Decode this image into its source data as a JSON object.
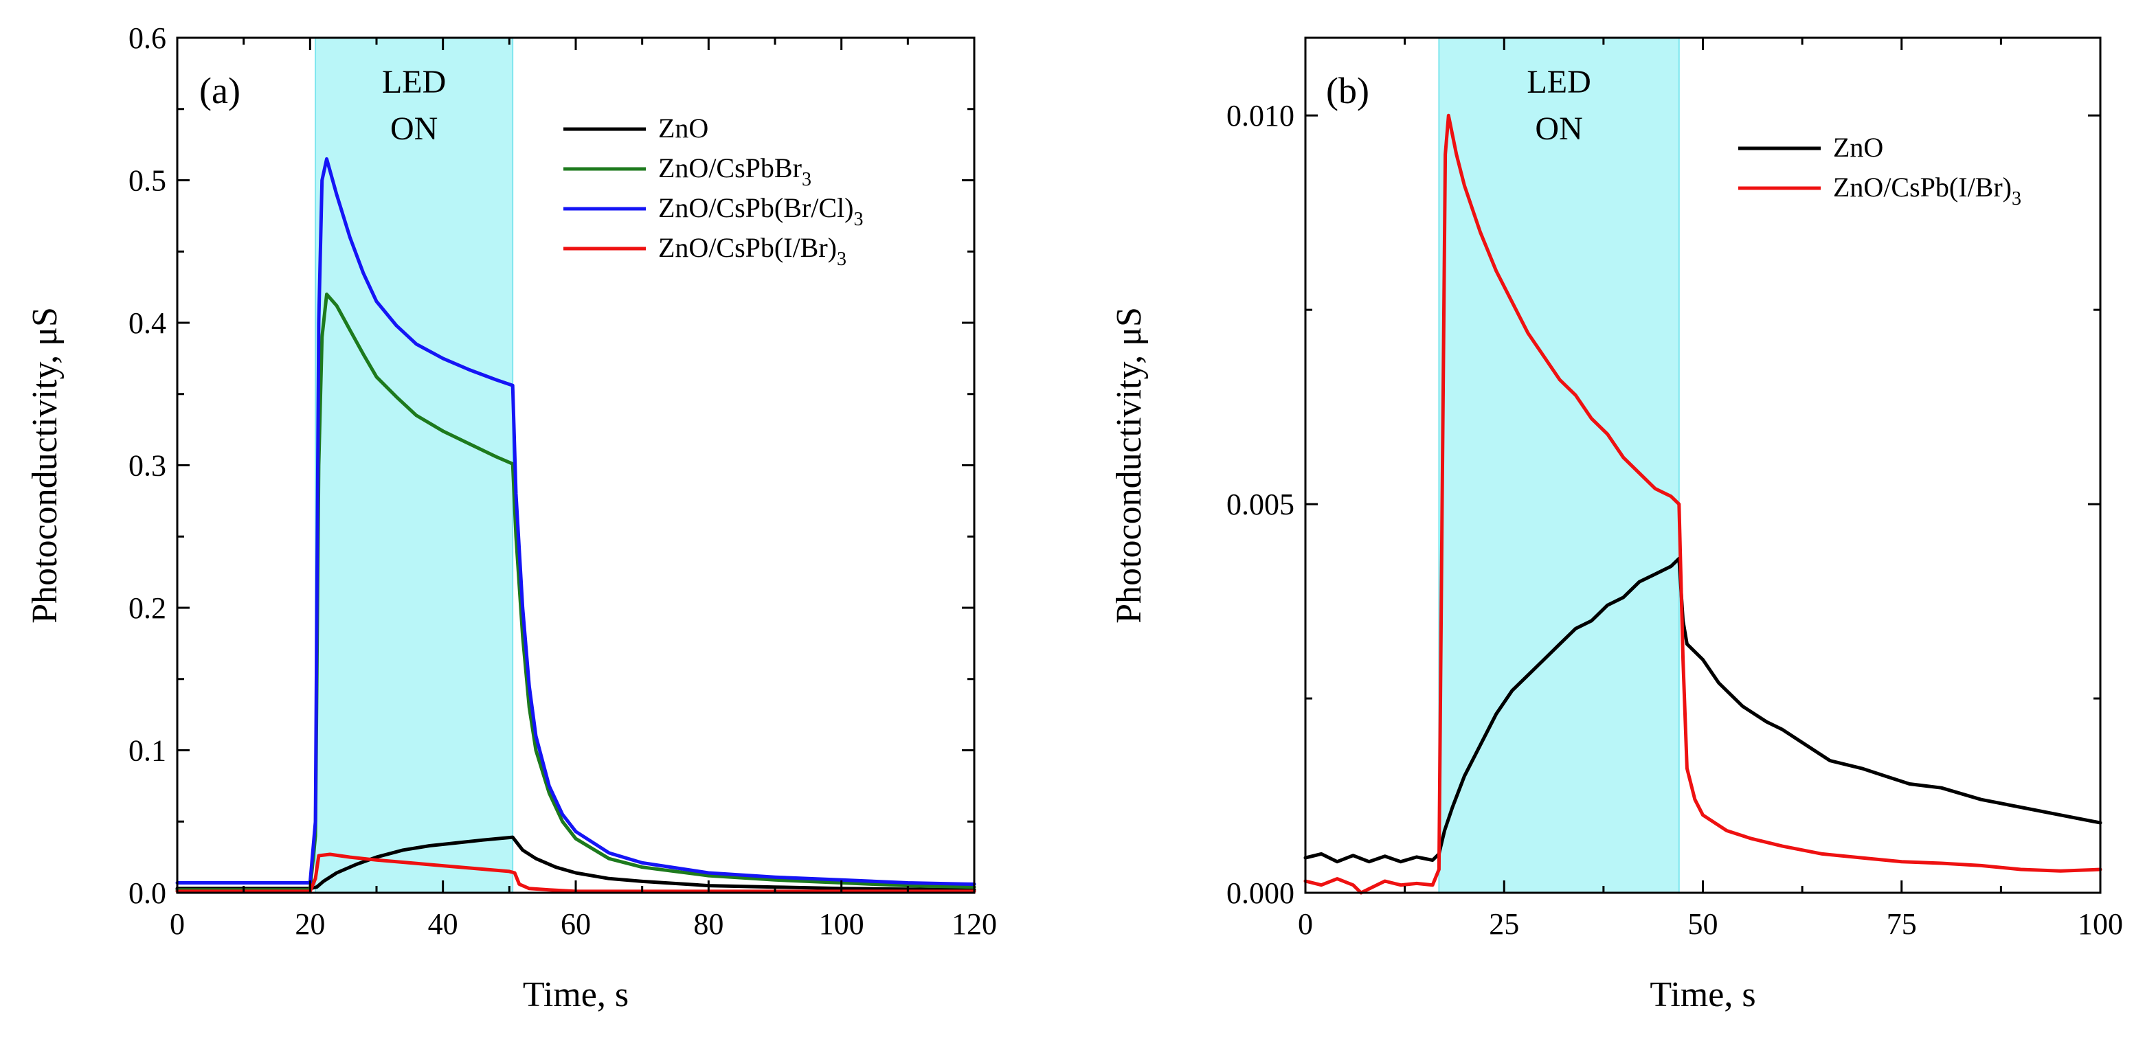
{
  "chart_data": [
    {
      "type": "line",
      "panel_label": "(a)",
      "xlabel": "Time, s",
      "ylabel": "Photoconductivity, μS",
      "xlim": [
        0,
        120
      ],
      "ylim": [
        0,
        0.6
      ],
      "xticks": [
        "0",
        "20",
        "40",
        "60",
        "80",
        "100",
        "120"
      ],
      "yticks": [
        "0.0",
        "0.1",
        "0.2",
        "0.3",
        "0.4",
        "0.5",
        "0.6"
      ],
      "highlight": {
        "x_start": 20.8,
        "x_end": 50.5,
        "label_lines": [
          "LED",
          "ON"
        ],
        "color": "#b9f6f8",
        "edge_color": "#7fe6ee"
      },
      "legend_position": "top-right",
      "series": [
        {
          "name": "ZnO",
          "name_parts": [
            "ZnO",
            "",
            ""
          ],
          "color": "#000000",
          "points": [
            [
              0,
              0.003
            ],
            [
              20,
              0.003
            ],
            [
              21,
              0.004
            ],
            [
              22,
              0.008
            ],
            [
              24,
              0.014
            ],
            [
              27,
              0.02
            ],
            [
              30,
              0.025
            ],
            [
              34,
              0.03
            ],
            [
              38,
              0.033
            ],
            [
              42,
              0.035
            ],
            [
              46,
              0.037
            ],
            [
              50.5,
              0.039
            ],
            [
              51,
              0.036
            ],
            [
              52,
              0.03
            ],
            [
              54,
              0.024
            ],
            [
              57,
              0.018
            ],
            [
              60,
              0.014
            ],
            [
              65,
              0.01
            ],
            [
              70,
              0.008
            ],
            [
              80,
              0.005
            ],
            [
              90,
              0.004
            ],
            [
              100,
              0.003
            ],
            [
              120,
              0.002
            ]
          ]
        },
        {
          "name": "ZnO/CsPbBr3",
          "name_parts": [
            "ZnO/CsPbBr",
            "3",
            ""
          ],
          "color": "#1d7a1d",
          "points": [
            [
              0,
              0.002
            ],
            [
              20,
              0.002
            ],
            [
              20.8,
              0.04
            ],
            [
              21.3,
              0.3
            ],
            [
              21.8,
              0.39
            ],
            [
              22.5,
              0.42
            ],
            [
              24,
              0.412
            ],
            [
              26,
              0.395
            ],
            [
              28,
              0.378
            ],
            [
              30,
              0.362
            ],
            [
              33,
              0.348
            ],
            [
              36,
              0.335
            ],
            [
              40,
              0.324
            ],
            [
              44,
              0.315
            ],
            [
              48,
              0.306
            ],
            [
              50.5,
              0.301
            ],
            [
              51,
              0.25
            ],
            [
              52,
              0.18
            ],
            [
              53,
              0.13
            ],
            [
              54,
              0.1
            ],
            [
              56,
              0.07
            ],
            [
              58,
              0.05
            ],
            [
              60,
              0.038
            ],
            [
              65,
              0.024
            ],
            [
              70,
              0.018
            ],
            [
              80,
              0.012
            ],
            [
              90,
              0.009
            ],
            [
              100,
              0.007
            ],
            [
              110,
              0.005
            ],
            [
              120,
              0.004
            ]
          ]
        },
        {
          "name": "ZnO/CsPb(Br/Cl)3",
          "name_parts": [
            "ZnO/CsPb(Br/Cl)",
            "3",
            ""
          ],
          "color": "#1515f5",
          "points": [
            [
              0,
              0.007
            ],
            [
              20,
              0.007
            ],
            [
              20.8,
              0.05
            ],
            [
              21.3,
              0.4
            ],
            [
              21.8,
              0.5
            ],
            [
              22.5,
              0.515
            ],
            [
              24,
              0.49
            ],
            [
              26,
              0.46
            ],
            [
              28,
              0.435
            ],
            [
              30,
              0.415
            ],
            [
              33,
              0.398
            ],
            [
              36,
              0.385
            ],
            [
              40,
              0.375
            ],
            [
              44,
              0.367
            ],
            [
              48,
              0.36
            ],
            [
              50.5,
              0.356
            ],
            [
              51,
              0.28
            ],
            [
              52,
              0.2
            ],
            [
              53,
              0.145
            ],
            [
              54,
              0.11
            ],
            [
              56,
              0.075
            ],
            [
              58,
              0.055
            ],
            [
              60,
              0.043
            ],
            [
              65,
              0.028
            ],
            [
              70,
              0.021
            ],
            [
              80,
              0.014
            ],
            [
              90,
              0.011
            ],
            [
              100,
              0.009
            ],
            [
              110,
              0.007
            ],
            [
              120,
              0.006
            ]
          ]
        },
        {
          "name": "ZnO/CsPb(I/Br)3",
          "name_parts": [
            "ZnO/CsPb(I/Br)",
            "3",
            ""
          ],
          "color": "#ee1111",
          "points": [
            [
              0,
              0.001
            ],
            [
              20,
              0.001
            ],
            [
              20.8,
              0.01
            ],
            [
              21.3,
              0.026
            ],
            [
              23,
              0.027
            ],
            [
              26,
              0.025
            ],
            [
              30,
              0.023
            ],
            [
              35,
              0.021
            ],
            [
              40,
              0.019
            ],
            [
              45,
              0.017
            ],
            [
              50,
              0.015
            ],
            [
              50.8,
              0.014
            ],
            [
              51.5,
              0.006
            ],
            [
              53,
              0.003
            ],
            [
              56,
              0.002
            ],
            [
              60,
              0.001
            ],
            [
              120,
              0.001
            ]
          ]
        }
      ]
    },
    {
      "type": "line",
      "panel_label": "(b)",
      "xlabel": "Time, s",
      "ylabel": "Photoconductivity, μS",
      "xlim": [
        0,
        100
      ],
      "ylim": [
        0,
        0.011
      ],
      "xticks": [
        "0",
        "25",
        "50",
        "75",
        "100"
      ],
      "yticks": [
        "0.000",
        "0.005",
        "0.010"
      ],
      "ytick_values": [
        0,
        0.005,
        0.01
      ],
      "highlight": {
        "x_start": 16.8,
        "x_end": 47,
        "label_lines": [
          "LED",
          "ON"
        ],
        "color": "#b9f6f8",
        "edge_color": "#7fe6ee"
      },
      "legend_position": "top-right",
      "series": [
        {
          "name": "ZnO",
          "name_parts": [
            "ZnO",
            "",
            ""
          ],
          "color": "#000000",
          "points": [
            [
              0,
              0.00045
            ],
            [
              2,
              0.0005
            ],
            [
              4,
              0.0004
            ],
            [
              6,
              0.00048
            ],
            [
              8,
              0.0004
            ],
            [
              10,
              0.00047
            ],
            [
              12,
              0.0004
            ],
            [
              14,
              0.00046
            ],
            [
              16,
              0.00042
            ],
            [
              16.8,
              0.0005
            ],
            [
              17.5,
              0.0008
            ],
            [
              18.5,
              0.0011
            ],
            [
              20,
              0.0015
            ],
            [
              22,
              0.0019
            ],
            [
              24,
              0.0023
            ],
            [
              26,
              0.0026
            ],
            [
              28,
              0.0028
            ],
            [
              30,
              0.003
            ],
            [
              32,
              0.0032
            ],
            [
              34,
              0.0034
            ],
            [
              36,
              0.0035
            ],
            [
              38,
              0.0037
            ],
            [
              40,
              0.0038
            ],
            [
              42,
              0.004
            ],
            [
              44,
              0.0041
            ],
            [
              46,
              0.0042
            ],
            [
              47,
              0.0043
            ],
            [
              47.5,
              0.0035
            ],
            [
              48,
              0.0032
            ],
            [
              50,
              0.003
            ],
            [
              52,
              0.0027
            ],
            [
              55,
              0.0024
            ],
            [
              58,
              0.0022
            ],
            [
              60,
              0.0021
            ],
            [
              63,
              0.0019
            ],
            [
              66,
              0.0017
            ],
            [
              70,
              0.0016
            ],
            [
              73,
              0.0015
            ],
            [
              76,
              0.0014
            ],
            [
              80,
              0.00135
            ],
            [
              85,
              0.0012
            ],
            [
              90,
              0.0011
            ],
            [
              95,
              0.001
            ],
            [
              100,
              0.0009
            ]
          ]
        },
        {
          "name": "ZnO/CsPb(I/Br)3",
          "name_parts": [
            "ZnO/CsPb(I/Br)",
            "3",
            ""
          ],
          "color": "#ee1111",
          "points": [
            [
              0,
              0.00015
            ],
            [
              2,
              0.0001
            ],
            [
              4,
              0.00018
            ],
            [
              6,
              0.0001
            ],
            [
              7,
              0.0
            ],
            [
              8,
              5e-05
            ],
            [
              10,
              0.00015
            ],
            [
              12,
              0.0001
            ],
            [
              14,
              0.00012
            ],
            [
              16,
              0.0001
            ],
            [
              16.8,
              0.0003
            ],
            [
              17.2,
              0.005
            ],
            [
              17.6,
              0.0095
            ],
            [
              18,
              0.01
            ],
            [
              19,
              0.0095
            ],
            [
              20,
              0.0091
            ],
            [
              22,
              0.0085
            ],
            [
              24,
              0.008
            ],
            [
              26,
              0.0076
            ],
            [
              28,
              0.0072
            ],
            [
              30,
              0.0069
            ],
            [
              32,
              0.0066
            ],
            [
              34,
              0.0064
            ],
            [
              36,
              0.0061
            ],
            [
              38,
              0.0059
            ],
            [
              40,
              0.0056
            ],
            [
              42,
              0.0054
            ],
            [
              44,
              0.0052
            ],
            [
              46,
              0.0051
            ],
            [
              47,
              0.005
            ],
            [
              47.5,
              0.003
            ],
            [
              48,
              0.0016
            ],
            [
              49,
              0.0012
            ],
            [
              50,
              0.001
            ],
            [
              53,
              0.0008
            ],
            [
              56,
              0.0007
            ],
            [
              60,
              0.0006
            ],
            [
              65,
              0.0005
            ],
            [
              70,
              0.00045
            ],
            [
              75,
              0.0004
            ],
            [
              80,
              0.00038
            ],
            [
              85,
              0.00035
            ],
            [
              90,
              0.0003
            ],
            [
              95,
              0.00028
            ],
            [
              100,
              0.0003
            ]
          ]
        }
      ]
    }
  ]
}
